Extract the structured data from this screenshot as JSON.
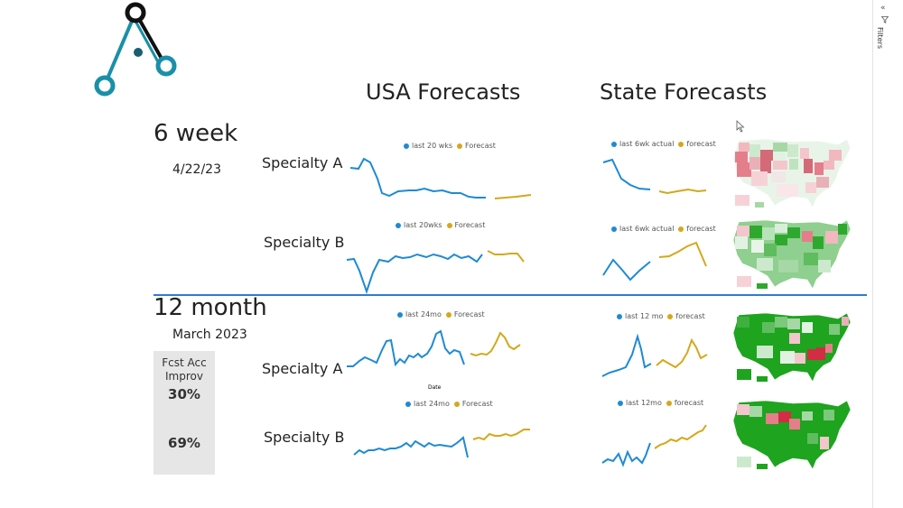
{
  "colors": {
    "actual": "#1f8ad4",
    "forecast": "#d4a81c",
    "divider": "#2f7bd0",
    "kpi_bg": "#e6e6e6",
    "logo_dark": "#111111",
    "logo_teal": "#1a8fa8"
  },
  "headers": {
    "usa": "USA Forecasts",
    "state": "State Forecasts"
  },
  "sections": {
    "six_week": {
      "title": "6 week",
      "date": "4/22/23"
    },
    "twelve_month": {
      "title": "12 month",
      "date": "March 2023"
    }
  },
  "kpi": {
    "label_line1": "Fcst Acc",
    "label_line2": "Improv",
    "value_a": "30%",
    "value_b": "69%"
  },
  "charts": {
    "w6_usa_a": {
      "label": "Specialty A",
      "legend_actual": "last 20 wks",
      "legend_forecast": "Forecast"
    },
    "w6_usa_b": {
      "label": "Specialty B",
      "legend_actual": "last 20wks",
      "legend_forecast": "Forecast"
    },
    "w6_state_a": {
      "legend_actual": "last 6wk actual",
      "legend_forecast": "forecast"
    },
    "w6_state_b": {
      "legend_actual": "last 6wk actual",
      "legend_forecast": "forecast"
    },
    "m12_usa_a": {
      "label": "Specialty A",
      "legend_actual": "last 24mo",
      "legend_forecast": "Forecast",
      "xlabel": "Date"
    },
    "m12_usa_b": {
      "label": "Specialty B",
      "legend_actual": "last 24mo",
      "legend_forecast": "Forecast"
    },
    "m12_state_a": {
      "legend_actual": "last 12 mo",
      "legend_forecast": "forecast"
    },
    "m12_state_b": {
      "legend_actual": "last 12mo",
      "legend_forecast": "forecast"
    }
  },
  "side_panel": {
    "filters_label": "Filters",
    "collapse_icon": "double-chevron-icon",
    "filter_icon": "funnel-icon"
  }
}
